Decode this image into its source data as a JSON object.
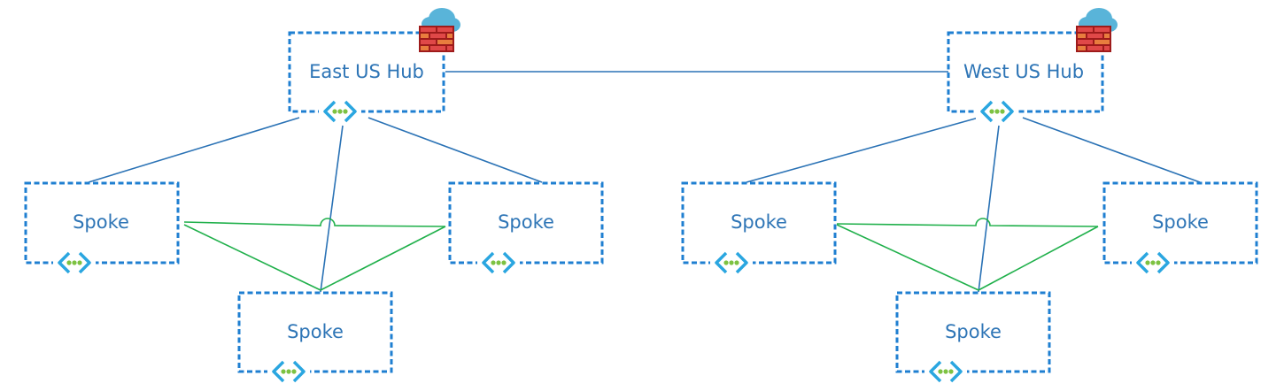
{
  "colors": {
    "box_border": "#1f7fd1",
    "hub_link": "#2a72b5",
    "spoke_link": "#20b04b",
    "label": "#2e75b6",
    "vnet_bracket": "#2aa6e0",
    "vnet_dots": "#7dc242",
    "firewall": "#c8282e",
    "cloud": "#59b4d9"
  },
  "icons": {
    "hub_badge": "firewall-cloud-icon",
    "vnet": "virtual-network-icon"
  },
  "east": {
    "hub": {
      "label": "East US Hub"
    },
    "spokes": [
      {
        "label": "Spoke"
      },
      {
        "label": "Spoke"
      },
      {
        "label": "Spoke"
      }
    ]
  },
  "west": {
    "hub": {
      "label": "West US Hub"
    },
    "spokes": [
      {
        "label": "Spoke"
      },
      {
        "label": "Spoke"
      },
      {
        "label": "Spoke"
      }
    ]
  }
}
